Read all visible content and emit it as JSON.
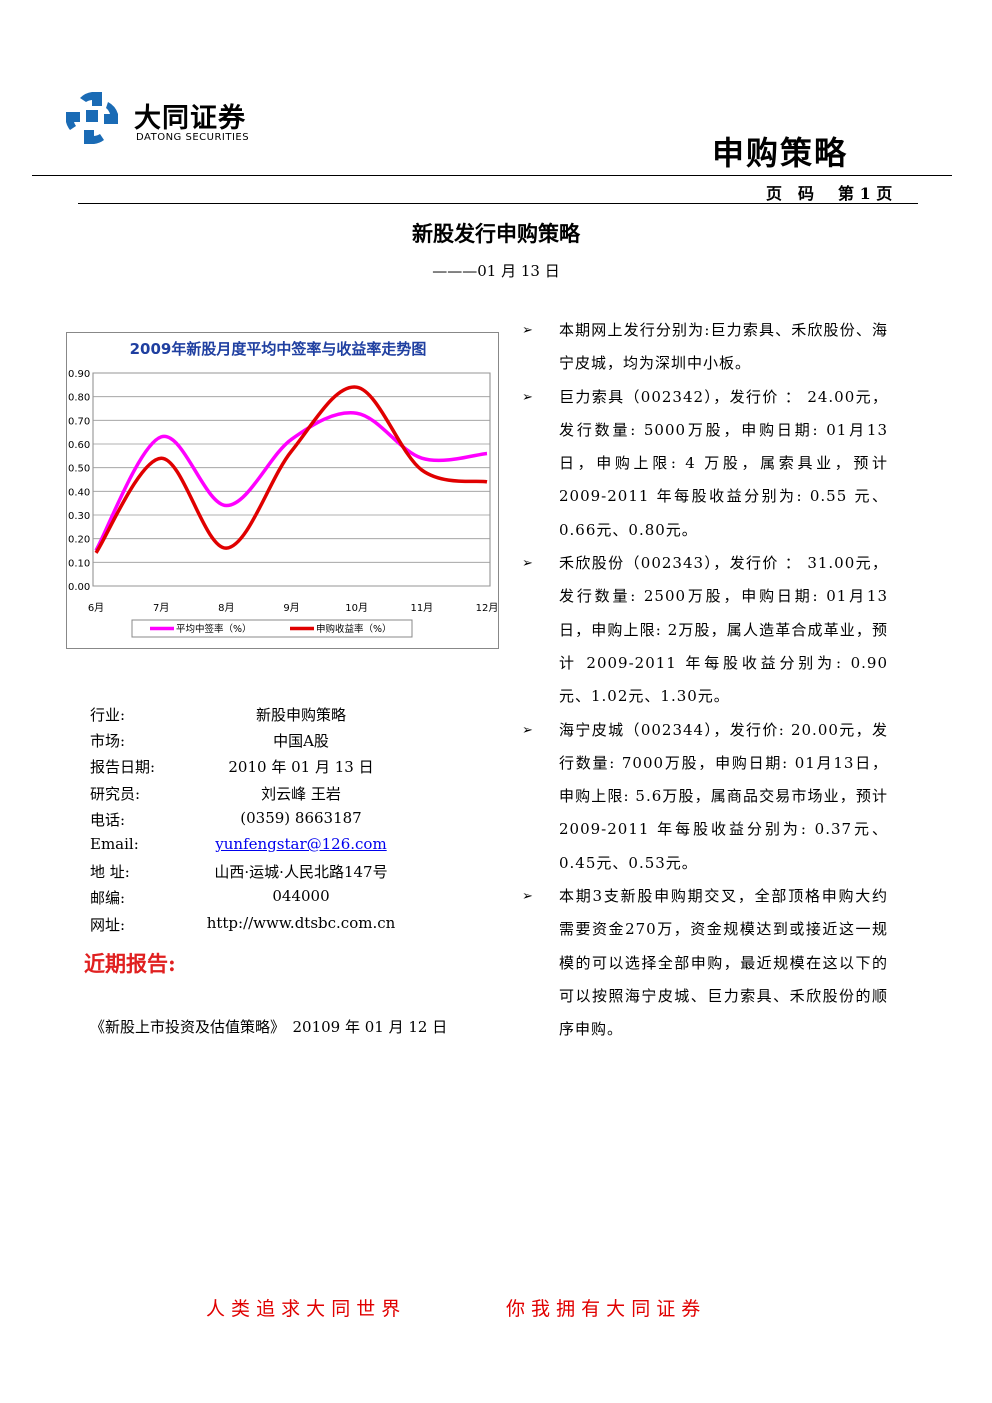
{
  "header": {
    "logo_name": "大同证券",
    "logo_sub": "DATONG SECURITIES",
    "section": "申购策略",
    "page_label": "页　码",
    "page_number": "第 1 页"
  },
  "title": "新股发行申购策略",
  "date": "———01 月 13 日",
  "chart_data": {
    "type": "line",
    "title": "2009年新股月度平均中签率与收益率走势图",
    "categories": [
      "6月",
      "7月",
      "8月",
      "9月",
      "10月",
      "11月",
      "12月"
    ],
    "series": [
      {
        "name": "平均中签率（%）",
        "color": "#ff00ff",
        "values": [
          0.15,
          0.63,
          0.34,
          0.62,
          0.73,
          0.54,
          0.56
        ]
      },
      {
        "name": "申购收益率（%）",
        "color": "#e00000",
        "values": [
          0.14,
          0.54,
          0.16,
          0.57,
          0.84,
          0.49,
          0.44
        ]
      }
    ],
    "ylim": [
      0,
      0.9
    ],
    "yticks": [
      {
        "value": 0,
        "label": "0.00"
      },
      {
        "value": 0.1,
        "label": "0.10"
      },
      {
        "value": 0.2,
        "label": "0.20"
      },
      {
        "value": 0.3,
        "label": "0.30"
      },
      {
        "value": 0.4,
        "label": "0.40"
      },
      {
        "value": 0.5,
        "label": "0.50"
      },
      {
        "value": 0.6,
        "label": "0.60"
      },
      {
        "value": 0.7,
        "label": "0.70"
      },
      {
        "value": 0.8,
        "label": "0.80"
      },
      {
        "value": 0.9,
        "label": "0.90"
      }
    ],
    "grid": true,
    "legend": "bottom"
  },
  "info": {
    "rows": [
      [
        "行业:",
        "新股申购策略"
      ],
      [
        "市场:",
        "中国A股"
      ],
      [
        "报告日期:",
        "2010 年 01 月 13 日"
      ],
      [
        "研究员:",
        "刘云峰 王岩"
      ],
      [
        "电话:",
        "(0359) 8663187"
      ],
      [
        "Email:",
        "yunfengstar@126.com"
      ],
      [
        "地 址:",
        "山西·运城·人民北路147号"
      ],
      [
        "邮编:",
        "044000"
      ],
      [
        "网址:",
        "http://www.dtsbc.com.cn"
      ]
    ]
  },
  "recent": {
    "heading": "近期报告:",
    "items": [
      "《新股上市投资及估值策略》　20109 年 01 月 12 日"
    ]
  },
  "bullets": [
    "本期网上发行分别为:巨力索具、禾欣股份、海宁皮城，均为深圳中小板。",
    "巨力索具（002342），发行价 ： 24.00元，发行数量: 5000万股，申购日期: 01月13日，申购上限: 4 万股，属索具业，预计 2009-2011 年每股收益分别为: 0.55 元、0.66元、0.80元。",
    "禾欣股份（002343），发行价 ： 31.00元，发行数量: 2500万股，申购日期: 01月13日，申购上限: 2万股，属人造革合成革业，预计 2009-2011 年每股收益分别为: 0.90 元、1.02元、1.30元。",
    "海宁皮城（002344），发行价: 20.00元，发行数量: 7000万股，申购日期: 01月13日，申购上限: 5.6万股，属商品交易市场业，预计 2009-2011 年每股收益分别为: 0.37元、0.45元、0.53元。",
    "本期3支新股申购期交叉，全部顶格申购大约需要资金270万，资金规模达到或接近这一规模的可以选择全部申购，最近规模在这以下的可以按照海宁皮城、巨力索具、禾欣股份的顺序申购。"
  ],
  "footer": [
    "人 类 追 求 大 同 世 界",
    "你 我 拥 有 大 同 证 券"
  ]
}
